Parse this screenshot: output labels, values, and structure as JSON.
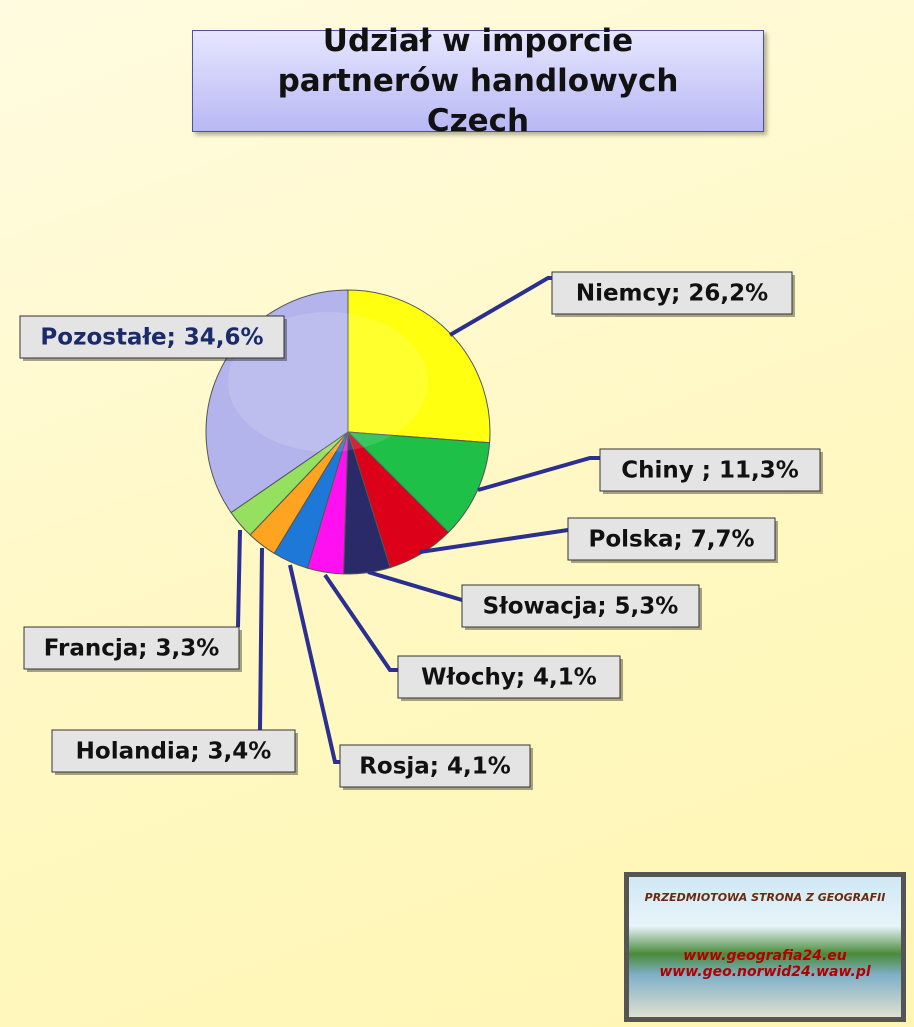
{
  "chart_data": {
    "type": "pie",
    "title": "Udział w imporcie partnerów handlowych Czech",
    "labels": [
      "Niemcy; 26,2%",
      "Chiny ; 11,3%",
      "Polska; 7,7%",
      "Słowacja; 5,3%",
      "Włochy; 4,1%",
      "Rosja; 4,1%",
      "Holandia; 3,4%",
      "Francja; 3,3%",
      "Pozostałe; 34,6%"
    ],
    "values": [
      26.2,
      11.3,
      7.7,
      5.3,
      4.1,
      4.1,
      3.4,
      3.3,
      34.6
    ],
    "colors": [
      "#ffff10",
      "#1ec048",
      "#dc0018",
      "#2a2a68",
      "#ff10f0",
      "#1e78d8",
      "#ffa420",
      "#96e060",
      "#b4b4ec"
    ]
  },
  "logo": {
    "line1": "PRZEDMIOTOWA STRONA Z GEOGRAFII",
    "line2": "www.geografia24.eu",
    "line3": "www.geo.norwid24.waw.pl"
  }
}
